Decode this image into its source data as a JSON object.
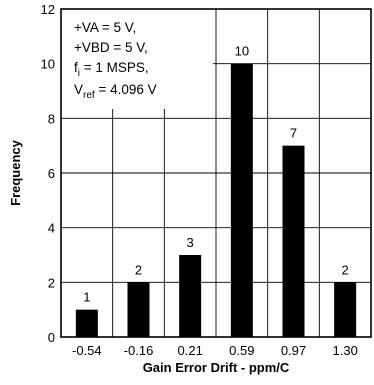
{
  "chart_data": {
    "type": "bar",
    "categories": [
      "-0.54",
      "-0.16",
      "0.21",
      "0.59",
      "0.97",
      "1.30"
    ],
    "values": [
      1,
      2,
      3,
      10,
      7,
      2
    ],
    "data_labels": [
      "1",
      "2",
      "3",
      "10",
      "7",
      "2"
    ],
    "xlabel": "Gain Error Drift - ppm/C",
    "ylabel": "Frequency",
    "ylim": [
      0,
      12
    ],
    "yticks": [
      "0",
      "2",
      "4",
      "6",
      "8",
      "10",
      "12"
    ],
    "grid": true,
    "bar_color": "#000000",
    "annotation": {
      "line1": "+VA = 5 V,",
      "line2": "+VBD = 5 V,",
      "line3_main": "f",
      "line3_sub": "i",
      "line3_rest": " = 1 MSPS,",
      "line4_main": "V",
      "line4_sub": "ref",
      "line4_rest": " = 4.096 V"
    }
  }
}
